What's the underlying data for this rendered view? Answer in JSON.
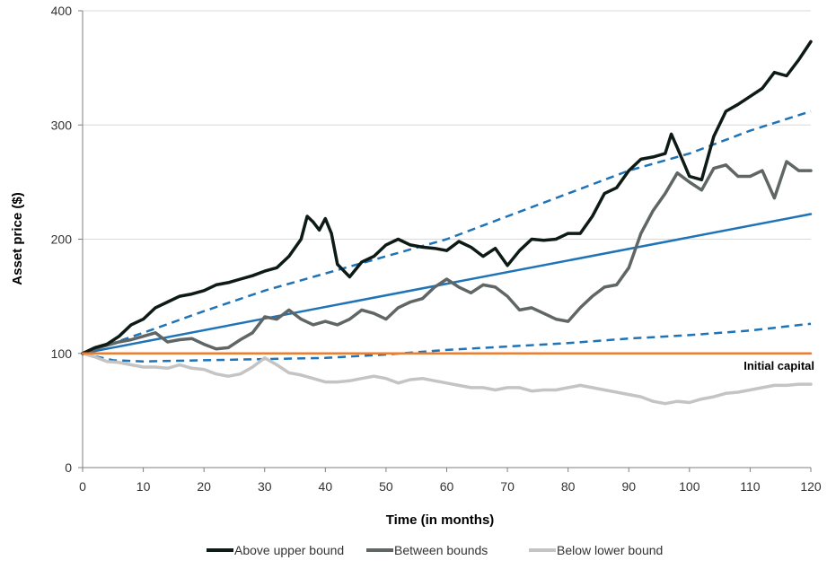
{
  "chart_data": {
    "type": "line",
    "xlabel": "Time (in months)",
    "ylabel": "Asset price ($)",
    "xlim": [
      0,
      120
    ],
    "ylim": [
      0,
      400
    ],
    "x_ticks": [
      0,
      10,
      20,
      30,
      40,
      50,
      60,
      70,
      80,
      90,
      100,
      110,
      120
    ],
    "y_ticks": [
      0,
      100,
      200,
      300,
      400
    ],
    "grid": "horizontal",
    "legend_position": "bottom",
    "annotation": "Initial capital",
    "colors": {
      "above": "#0d1a16",
      "between": "#5f6665",
      "below": "#c4c4c4",
      "expected": "#1f73b7",
      "bounds": "#1f73b7",
      "initial": "#ed7d31",
      "grid": "#d9d9d9",
      "axis": "#7f7f7f"
    },
    "series": [
      {
        "name": "Above upper bound",
        "x": [
          0,
          2,
          4,
          6,
          8,
          10,
          12,
          14,
          16,
          18,
          20,
          22,
          24,
          26,
          28,
          30,
          32,
          34,
          36,
          37,
          38,
          39,
          40,
          41,
          42,
          44,
          46,
          48,
          50,
          52,
          54,
          56,
          58,
          60,
          62,
          64,
          66,
          68,
          70,
          72,
          74,
          76,
          78,
          80,
          82,
          84,
          86,
          88,
          90,
          92,
          94,
          96,
          97,
          98,
          100,
          102,
          104,
          106,
          108,
          110,
          112,
          114,
          116,
          118,
          120
        ],
        "values": [
          100,
          105,
          108,
          115,
          125,
          130,
          140,
          145,
          150,
          152,
          155,
          160,
          162,
          165,
          168,
          172,
          175,
          185,
          200,
          220,
          215,
          208,
          218,
          205,
          178,
          167,
          180,
          185,
          195,
          200,
          195,
          193,
          192,
          190,
          198,
          193,
          185,
          192,
          177,
          190,
          200,
          199,
          200,
          205,
          205,
          220,
          240,
          245,
          260,
          270,
          272,
          275,
          292,
          280,
          255,
          252,
          290,
          312,
          318,
          325,
          332,
          346,
          343,
          357,
          373
        ],
        "color": "above"
      },
      {
        "name": "Between bounds",
        "x": [
          0,
          2,
          4,
          6,
          8,
          10,
          12,
          14,
          16,
          18,
          20,
          22,
          24,
          26,
          28,
          30,
          32,
          34,
          36,
          38,
          40,
          42,
          44,
          46,
          48,
          50,
          52,
          54,
          56,
          58,
          60,
          62,
          64,
          66,
          68,
          70,
          72,
          74,
          76,
          78,
          80,
          82,
          84,
          86,
          88,
          90,
          92,
          94,
          96,
          98,
          100,
          102,
          104,
          106,
          108,
          110,
          112,
          114,
          116,
          118,
          120
        ],
        "values": [
          100,
          104,
          107,
          110,
          112,
          115,
          118,
          110,
          112,
          113,
          108,
          104,
          105,
          112,
          118,
          132,
          130,
          138,
          130,
          125,
          128,
          125,
          130,
          138,
          135,
          130,
          140,
          145,
          148,
          158,
          165,
          158,
          153,
          160,
          158,
          150,
          138,
          140,
          135,
          130,
          128,
          140,
          150,
          158,
          160,
          175,
          205,
          225,
          240,
          258,
          250,
          243,
          262,
          265,
          255,
          255,
          260,
          236,
          268,
          260,
          260
        ],
        "color": "between"
      },
      {
        "name": "Below lower bound",
        "x": [
          0,
          2,
          4,
          6,
          8,
          10,
          12,
          14,
          16,
          18,
          20,
          22,
          24,
          26,
          28,
          30,
          32,
          34,
          36,
          38,
          40,
          42,
          44,
          46,
          48,
          50,
          52,
          54,
          56,
          58,
          60,
          62,
          64,
          66,
          68,
          70,
          72,
          74,
          76,
          78,
          80,
          82,
          84,
          86,
          88,
          90,
          92,
          94,
          96,
          98,
          100,
          102,
          104,
          106,
          108,
          110,
          112,
          114,
          116,
          118,
          120
        ],
        "values": [
          100,
          97,
          93,
          92,
          90,
          88,
          88,
          87,
          90,
          87,
          86,
          82,
          80,
          82,
          88,
          96,
          90,
          83,
          81,
          78,
          75,
          75,
          76,
          78,
          80,
          78,
          74,
          77,
          78,
          76,
          74,
          72,
          70,
          70,
          68,
          70,
          70,
          67,
          68,
          68,
          70,
          72,
          70,
          68,
          66,
          64,
          62,
          58,
          56,
          58,
          57,
          60,
          62,
          65,
          66,
          68,
          70,
          72,
          72,
          73,
          73
        ],
        "color": "below"
      },
      {
        "x": [
          0,
          120
        ],
        "values": [
          100,
          222
        ],
        "color": "expected",
        "style": "solid"
      },
      {
        "x": [
          0,
          10,
          20,
          30,
          40,
          50,
          60,
          70,
          80,
          90,
          100,
          110,
          120
        ],
        "values": [
          100,
          118,
          137,
          155,
          170,
          185,
          200,
          220,
          240,
          260,
          275,
          295,
          312
        ],
        "color": "bounds",
        "style": "dashed"
      },
      {
        "x": [
          0,
          5,
          10,
          20,
          30,
          40,
          50,
          60,
          70,
          80,
          90,
          100,
          110,
          120
        ],
        "values": [
          100,
          94,
          93,
          94,
          95,
          96,
          99,
          103,
          106,
          109,
          113,
          116,
          120,
          126
        ],
        "color": "bounds",
        "style": "dashed"
      },
      {
        "x": [
          0,
          120
        ],
        "values": [
          100,
          100
        ],
        "color": "initial",
        "style": "solid"
      }
    ]
  }
}
